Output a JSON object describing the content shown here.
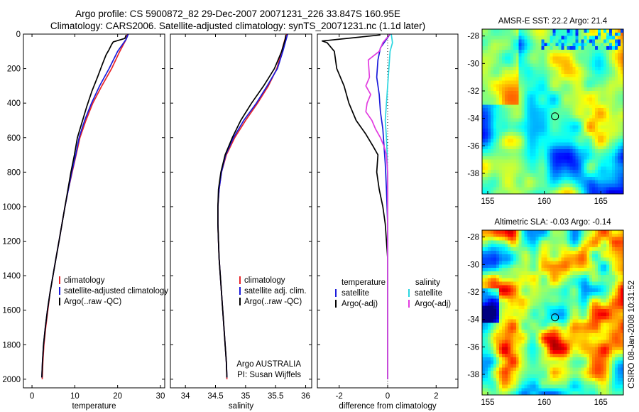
{
  "header": {
    "line1": "Argo profile: CS 5900872_82 29-Dec-2007 20071231_226 33.847S 160.95E",
    "line2": "Climatology: CARS2006. Satellite-adjusted climatology: synTS_20071231.nc (1.1d later)"
  },
  "side_text": "CSIRO 08-Jan-2008 10:31:52",
  "colors": {
    "climatology": "#e8262b",
    "satellite": "#1a1adb",
    "argo": "#000000",
    "salinity_satellite": "#2ad6e0",
    "salinity_argo": "#e23be0"
  },
  "chart_data": [
    {
      "type": "line",
      "panel": "temperature",
      "xlabel": "temperature",
      "ylabel": "",
      "xlim": [
        -2,
        31
      ],
      "ylim": [
        2050,
        0
      ],
      "xticks": [
        0,
        10,
        20,
        30
      ],
      "yticks": [
        0,
        200,
        400,
        600,
        800,
        1000,
        1200,
        1400,
        1600,
        1800,
        2000
      ],
      "legend": [
        "climatology",
        "satellite-adjusted climatology",
        "Argo(..raw -QC)"
      ],
      "legend_placement": "lower-right",
      "series": [
        {
          "name": "climatology",
          "color_key": "climatology",
          "points": [
            [
              22.3,
              0
            ],
            [
              22.0,
              30
            ],
            [
              20.5,
              100
            ],
            [
              18.6,
              200
            ],
            [
              16.3,
              300
            ],
            [
              14.2,
              400
            ],
            [
              12.6,
              500
            ],
            [
              11.2,
              600
            ],
            [
              10.3,
              700
            ],
            [
              9.4,
              800
            ],
            [
              8.5,
              900
            ],
            [
              7.7,
              1000
            ],
            [
              7.0,
              1100
            ],
            [
              6.3,
              1200
            ],
            [
              5.6,
              1300
            ],
            [
              4.9,
              1400
            ],
            [
              4.2,
              1500
            ],
            [
              3.7,
              1600
            ],
            [
              3.2,
              1700
            ],
            [
              2.8,
              1800
            ],
            [
              2.55,
              1900
            ],
            [
              2.4,
              2000
            ]
          ]
        },
        {
          "name": "satellite-adjusted climatology",
          "color_key": "satellite",
          "points": [
            [
              22.5,
              0
            ],
            [
              22.0,
              30
            ],
            [
              20.0,
              100
            ],
            [
              18.0,
              200
            ],
            [
              15.8,
              300
            ],
            [
              13.9,
              400
            ],
            [
              12.3,
              500
            ],
            [
              11.0,
              600
            ],
            [
              10.2,
              700
            ],
            [
              9.3,
              800
            ],
            [
              8.5,
              900
            ],
            [
              7.7,
              1000
            ],
            [
              7.0,
              1100
            ],
            [
              6.3,
              1200
            ],
            [
              5.6,
              1300
            ],
            [
              4.9,
              1400
            ],
            [
              4.2,
              1500
            ],
            [
              3.6,
              1600
            ],
            [
              3.1,
              1700
            ],
            [
              2.7,
              1800
            ],
            [
              2.45,
              1900
            ],
            [
              2.3,
              1990
            ]
          ]
        },
        {
          "name": "Argo(..raw -QC)",
          "color_key": "argo",
          "points": [
            [
              22.0,
              5
            ],
            [
              21.7,
              25
            ],
            [
              19.0,
              45
            ],
            [
              18.6,
              60
            ],
            [
              18.0,
              90
            ],
            [
              17.3,
              120
            ],
            [
              16.5,
              170
            ],
            [
              15.3,
              250
            ],
            [
              14.0,
              330
            ],
            [
              12.8,
              420
            ],
            [
              11.7,
              510
            ],
            [
              10.6,
              600
            ],
            [
              9.9,
              700
            ],
            [
              9.1,
              800
            ],
            [
              8.4,
              900
            ],
            [
              7.7,
              1000
            ],
            [
              7.0,
              1100
            ],
            [
              6.3,
              1200
            ],
            [
              5.6,
              1300
            ],
            [
              4.9,
              1400
            ],
            [
              4.2,
              1500
            ],
            [
              3.6,
              1600
            ],
            [
              3.1,
              1700
            ],
            [
              2.7,
              1800
            ],
            [
              2.45,
              1900
            ],
            [
              2.3,
              1990
            ]
          ]
        }
      ]
    },
    {
      "type": "line",
      "panel": "salinity",
      "xlabel": "salinity",
      "ylabel": "",
      "xlim": [
        33.75,
        36.1
      ],
      "ylim": [
        2050,
        0
      ],
      "xticks": [
        34,
        34.5,
        35,
        35.5,
        36
      ],
      "yticks": [
        0,
        200,
        400,
        600,
        800,
        1000,
        1200,
        1400,
        1600,
        1800,
        2000
      ],
      "legend": [
        "climatology",
        "satellite adj. clim.",
        "Argo(..raw -QC)"
      ],
      "legend_placement": "lower-right",
      "annotation": [
        "Argo AUSTRALIA",
        "PI: Susan Wijffels"
      ],
      "series": [
        {
          "name": "climatology",
          "color_key": "climatology",
          "points": [
            [
              35.68,
              0
            ],
            [
              35.64,
              50
            ],
            [
              35.6,
              100
            ],
            [
              35.52,
              200
            ],
            [
              35.38,
              300
            ],
            [
              35.2,
              400
            ],
            [
              35.0,
              500
            ],
            [
              34.82,
              600
            ],
            [
              34.68,
              700
            ],
            [
              34.6,
              800
            ],
            [
              34.56,
              900
            ],
            [
              34.54,
              1000
            ],
            [
              34.54,
              1100
            ],
            [
              34.55,
              1200
            ],
            [
              34.56,
              1300
            ],
            [
              34.58,
              1400
            ],
            [
              34.6,
              1500
            ],
            [
              34.62,
              1600
            ],
            [
              34.64,
              1700
            ],
            [
              34.66,
              1800
            ],
            [
              34.68,
              1900
            ],
            [
              34.69,
              2000
            ]
          ]
        },
        {
          "name": "satellite adj. clim.",
          "color_key": "satellite",
          "points": [
            [
              35.7,
              0
            ],
            [
              35.66,
              50
            ],
            [
              35.62,
              100
            ],
            [
              35.53,
              200
            ],
            [
              35.36,
              300
            ],
            [
              35.18,
              400
            ],
            [
              34.97,
              500
            ],
            [
              34.8,
              600
            ],
            [
              34.67,
              700
            ],
            [
              34.6,
              800
            ],
            [
              34.56,
              900
            ],
            [
              34.54,
              1000
            ],
            [
              34.54,
              1100
            ],
            [
              34.55,
              1200
            ],
            [
              34.56,
              1300
            ],
            [
              34.58,
              1400
            ],
            [
              34.6,
              1500
            ],
            [
              34.62,
              1600
            ],
            [
              34.64,
              1700
            ],
            [
              34.66,
              1800
            ],
            [
              34.68,
              1900
            ],
            [
              34.69,
              1990
            ]
          ]
        },
        {
          "name": "Argo(..raw -QC)",
          "color_key": "argo",
          "points": [
            [
              35.67,
              5
            ],
            [
              35.66,
              30
            ],
            [
              35.6,
              100
            ],
            [
              35.48,
              200
            ],
            [
              35.3,
              300
            ],
            [
              35.1,
              400
            ],
            [
              34.92,
              500
            ],
            [
              34.78,
              600
            ],
            [
              34.66,
              700
            ],
            [
              34.59,
              800
            ],
            [
              34.55,
              900
            ],
            [
              34.54,
              1000
            ],
            [
              34.54,
              1100
            ],
            [
              34.55,
              1200
            ],
            [
              34.56,
              1300
            ],
            [
              34.58,
              1400
            ],
            [
              34.6,
              1500
            ],
            [
              34.62,
              1600
            ],
            [
              34.64,
              1700
            ],
            [
              34.66,
              1800
            ],
            [
              34.68,
              1900
            ],
            [
              34.69,
              1990
            ]
          ]
        }
      ]
    },
    {
      "type": "line",
      "panel": "difference",
      "xlabel": "difference from climatology",
      "ylabel": "",
      "xlim": [
        -2.9,
        2.9
      ],
      "ylim": [
        2050,
        0
      ],
      "xticks": [
        -2,
        0,
        2
      ],
      "yticks": [
        0,
        200,
        400,
        600,
        800,
        1000,
        1200,
        1400,
        1600,
        1800,
        2000
      ],
      "legend_groups": [
        {
          "heading": "temperature",
          "items": [
            "satellite",
            "Argo(-adj)"
          ]
        },
        {
          "heading": "salinity",
          "items": [
            "satellite",
            "Argo(-adj)"
          ]
        }
      ],
      "series": [
        {
          "name": "temperature satellite",
          "color_key": "satellite",
          "points": [
            [
              0.1,
              0
            ],
            [
              -0.1,
              40
            ],
            [
              -0.3,
              80
            ],
            [
              -0.4,
              150
            ],
            [
              -0.45,
              250
            ],
            [
              -0.35,
              350
            ],
            [
              -0.3,
              450
            ],
            [
              -0.2,
              550
            ],
            [
              -0.15,
              650
            ],
            [
              -0.1,
              750
            ],
            [
              -0.05,
              900
            ],
            [
              0,
              1100
            ],
            [
              0,
              1400
            ],
            [
              0,
              1700
            ],
            [
              0,
              2000
            ]
          ]
        },
        {
          "name": "temperature Argo(-adj)",
          "color_key": "argo",
          "points": [
            [
              -0.3,
              5
            ],
            [
              -2.7,
              40
            ],
            [
              -2.5,
              50
            ],
            [
              -2.2,
              100
            ],
            [
              -2.1,
              200
            ],
            [
              -1.8,
              300
            ],
            [
              -1.6,
              400
            ],
            [
              -1.3,
              500
            ],
            [
              -0.9,
              580
            ],
            [
              -0.6,
              650
            ],
            [
              -0.4,
              700
            ],
            [
              -0.45,
              800
            ],
            [
              -0.35,
              900
            ],
            [
              -0.2,
              1000
            ],
            [
              -0.1,
              1100
            ],
            [
              0,
              1300
            ],
            [
              0,
              1600
            ],
            [
              0,
              2000
            ]
          ]
        },
        {
          "name": "salinity satellite",
          "color_key": "salinity_satellite",
          "points": [
            [
              0.15,
              0
            ],
            [
              0.2,
              50
            ],
            [
              0.1,
              100
            ],
            [
              0.05,
              200
            ],
            [
              0,
              300
            ],
            [
              -0.05,
              400
            ],
            [
              -0.1,
              500
            ],
            [
              -0.05,
              600
            ],
            [
              -0.02,
              700
            ],
            [
              0,
              900
            ],
            [
              0,
              1200
            ],
            [
              0,
              1600
            ],
            [
              0,
              2000
            ]
          ]
        },
        {
          "name": "salinity Argo(-adj)",
          "color_key": "salinity_argo",
          "points": [
            [
              0.1,
              0
            ],
            [
              -0.2,
              50
            ],
            [
              -0.35,
              100
            ],
            [
              -0.8,
              150
            ],
            [
              -0.75,
              250
            ],
            [
              -0.9,
              300
            ],
            [
              -0.7,
              350
            ],
            [
              -0.85,
              400
            ],
            [
              -0.9,
              450
            ],
            [
              -0.65,
              500
            ],
            [
              -0.5,
              550
            ],
            [
              -0.3,
              600
            ],
            [
              -0.15,
              650
            ],
            [
              -0.05,
              700
            ],
            [
              0,
              800
            ],
            [
              0,
              1000
            ],
            [
              0,
              1400
            ],
            [
              0,
              2000
            ]
          ]
        }
      ]
    },
    {
      "type": "heatmap",
      "panel": "sst_map",
      "title": "AMSR-E SST: 22.2  Argo: 21.4",
      "xlim": [
        154.5,
        167
      ],
      "ylim": [
        -39.5,
        -27.5
      ],
      "xticks": [
        155,
        160,
        165
      ],
      "yticks": [
        -28,
        -30,
        -32,
        -34,
        -36,
        -38
      ],
      "marker": [
        160.95,
        -33.847
      ]
    },
    {
      "type": "heatmap",
      "panel": "sla_map",
      "title": "Altimetric SLA: -0.03  Argo: -0.14",
      "xlim": [
        154.5,
        167
      ],
      "ylim": [
        -39.5,
        -27.5
      ],
      "xticks": [
        155,
        160,
        165
      ],
      "yticks": [
        -28,
        -30,
        -32,
        -34,
        -36,
        -38
      ],
      "marker": [
        160.95,
        -33.847
      ]
    }
  ]
}
